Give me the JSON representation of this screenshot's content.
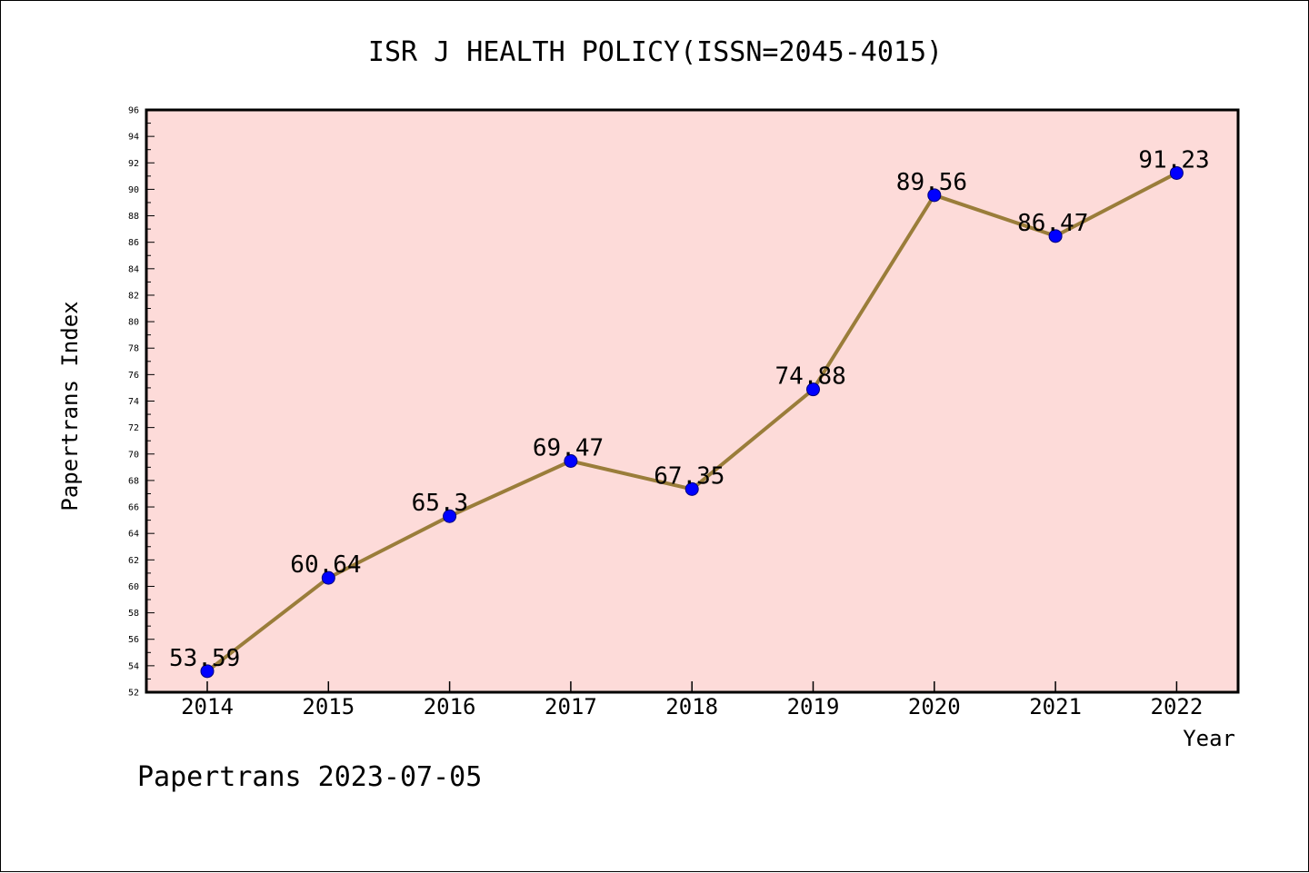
{
  "chart_data": {
    "type": "line",
    "title": "ISR J HEALTH POLICY(ISSN=2045-4015)",
    "xlabel": "Year",
    "ylabel": "Papertrans Index",
    "footer": "Papertrans 2023-07-05",
    "categories": [
      "2014",
      "2015",
      "2016",
      "2017",
      "2018",
      "2019",
      "2020",
      "2021",
      "2022"
    ],
    "values": [
      53.59,
      60.64,
      65.3,
      69.47,
      67.35,
      74.88,
      89.56,
      86.47,
      91.23
    ],
    "data_labels": [
      "53.59",
      "60.64",
      "65.3",
      "69.47",
      "67.35",
      "74.88",
      "89.56",
      "86.47",
      "91.23"
    ],
    "ylim": [
      52,
      96
    ],
    "yticks": [
      "52",
      "54",
      "56",
      "58",
      "60",
      "62",
      "64",
      "66",
      "68",
      "70",
      "72",
      "74",
      "76",
      "78",
      "80",
      "82",
      "84",
      "86",
      "88",
      "90",
      "92",
      "94",
      "96"
    ],
    "grid": false,
    "legend": "none",
    "colors": {
      "plot_background": "#fddbd9",
      "line": "#9a7d3a",
      "marker": "#0000ff",
      "marker_edge": "#00007a"
    }
  }
}
